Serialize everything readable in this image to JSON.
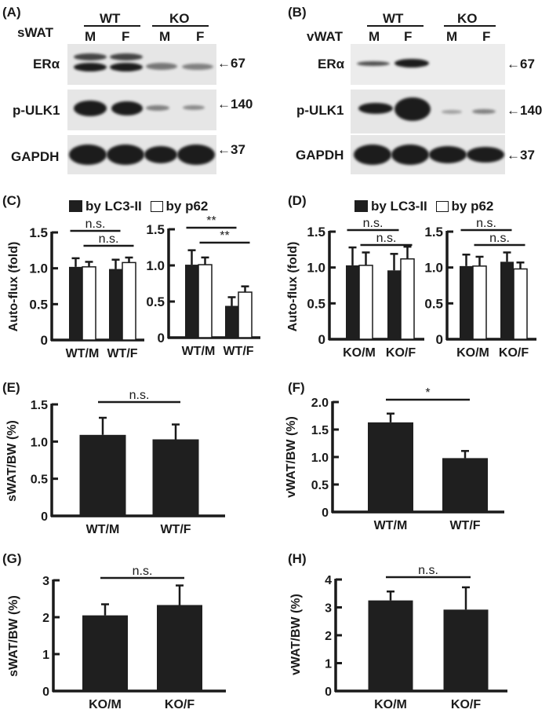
{
  "panels": {
    "A": {
      "label": "(A)",
      "tissue": "sWAT",
      "groups": [
        "WT",
        "KO"
      ],
      "lanes": [
        "M",
        "F",
        "M",
        "F"
      ],
      "rows": [
        {
          "name": "ERα",
          "marker": "←67"
        },
        {
          "name": "p-ULK1",
          "marker": "←140"
        },
        {
          "name": "GAPDH",
          "marker": "←37"
        }
      ]
    },
    "B": {
      "label": "(B)",
      "tissue": "vWAT",
      "groups": [
        "WT",
        "KO"
      ],
      "lanes": [
        "M",
        "F",
        "M",
        "F"
      ],
      "rows": [
        {
          "name": "ERα",
          "marker": "←67"
        },
        {
          "name": "p-ULK1",
          "marker": "←140"
        },
        {
          "name": "GAPDH",
          "marker": "←37"
        }
      ]
    },
    "C": {
      "label": "(C)",
      "legend": [
        "by LC3-II",
        "by p62"
      ]
    },
    "D": {
      "label": "(D)",
      "legend": [
        "by LC3-II",
        "by p62"
      ]
    },
    "E": {
      "label": "(E)"
    },
    "F": {
      "label": "(F)"
    },
    "G": {
      "label": "(G)"
    },
    "H": {
      "label": "(H)"
    }
  },
  "colors": {
    "bar_fill": "#1f1f1f",
    "bar_open": "#ffffff",
    "axis": "#1a1a1a"
  },
  "chart_data": [
    {
      "panel": "C-left",
      "type": "bar",
      "title": "",
      "ylabel": "Auto-flux (fold)",
      "xlabel": "",
      "categories": [
        "WT/M",
        "WT/F"
      ],
      "ylim": [
        0,
        1.5
      ],
      "yticks": [
        "0",
        "0.5",
        "1.0",
        "1.5"
      ],
      "series": [
        {
          "name": "by LC3-II",
          "values": [
            1.02,
            0.99
          ],
          "errors": [
            0.12,
            0.13
          ]
        },
        {
          "name": "by p62",
          "values": [
            1.02,
            1.08
          ],
          "errors": [
            0.07,
            0.07
          ]
        }
      ],
      "annotations": [
        {
          "text": "n.s.",
          "between": [
            "WT/M LC3-II",
            "WT/F LC3-II"
          ]
        },
        {
          "text": "n.s.",
          "between": [
            "WT/M p62",
            "WT/F p62"
          ]
        }
      ]
    },
    {
      "panel": "C-right",
      "type": "bar",
      "title": "",
      "ylabel": "",
      "xlabel": "",
      "categories": [
        "WT/M",
        "WT/F"
      ],
      "ylim": [
        0,
        1.5
      ],
      "yticks": [
        "0",
        "0.5",
        "1.0",
        "1.5"
      ],
      "series": [
        {
          "name": "by LC3-II",
          "values": [
            1.01,
            0.44
          ],
          "errors": [
            0.2,
            0.12
          ]
        },
        {
          "name": "by p62",
          "values": [
            1.01,
            0.63
          ],
          "errors": [
            0.1,
            0.08
          ]
        }
      ],
      "annotations": [
        {
          "text": "**",
          "between": [
            "WT/M LC3-II",
            "WT/F LC3-II"
          ]
        },
        {
          "text": "**",
          "between": [
            "WT/M p62",
            "WT/F p62"
          ]
        }
      ]
    },
    {
      "panel": "D-left",
      "type": "bar",
      "title": "",
      "ylabel": "Auto-flux (fold)",
      "xlabel": "",
      "categories": [
        "KO/M",
        "KO/F"
      ],
      "ylim": [
        0,
        1.5
      ],
      "yticks": [
        "0",
        "0.5",
        "1.0",
        "1.5"
      ],
      "series": [
        {
          "name": "by LC3-II",
          "values": [
            1.03,
            0.96
          ],
          "errors": [
            0.25,
            0.23
          ]
        },
        {
          "name": "by p62",
          "values": [
            1.03,
            1.12
          ],
          "errors": [
            0.18,
            0.17
          ]
        }
      ],
      "annotations": [
        {
          "text": "n.s.",
          "between": [
            "KO/M LC3-II",
            "KO/F LC3-II"
          ]
        },
        {
          "text": "n.s.",
          "between": [
            "KO/M p62",
            "KO/F p62"
          ]
        }
      ]
    },
    {
      "panel": "D-right",
      "type": "bar",
      "title": "",
      "ylabel": "",
      "xlabel": "",
      "categories": [
        "KO/M",
        "KO/F"
      ],
      "ylim": [
        0,
        1.5
      ],
      "yticks": [
        "0",
        "0.5",
        "1.0",
        "1.5"
      ],
      "series": [
        {
          "name": "by LC3-II",
          "values": [
            1.02,
            1.08
          ],
          "errors": [
            0.16,
            0.13
          ]
        },
        {
          "name": "by p62",
          "values": [
            1.02,
            0.98
          ],
          "errors": [
            0.13,
            0.09
          ]
        }
      ],
      "annotations": [
        {
          "text": "n.s.",
          "between": [
            "KO/M LC3-II",
            "KO/F LC3-II"
          ]
        },
        {
          "text": "n.s.",
          "between": [
            "KO/M p62",
            "KO/F p62"
          ]
        }
      ]
    },
    {
      "panel": "E",
      "type": "bar",
      "title": "",
      "ylabel": "sWAT/BW (%)",
      "xlabel": "",
      "categories": [
        "WT/M",
        "WT/F"
      ],
      "ylim": [
        0,
        1.5
      ],
      "yticks": [
        "0",
        "0.5",
        "1.0",
        "1.5"
      ],
      "values": [
        1.09,
        1.03
      ],
      "errors": [
        0.23,
        0.2
      ],
      "annotations": [
        {
          "text": "n.s."
        }
      ]
    },
    {
      "panel": "F",
      "type": "bar",
      "title": "",
      "ylabel": "vWAT/BW (%)",
      "xlabel": "",
      "categories": [
        "WT/M",
        "WT/F"
      ],
      "ylim": [
        0,
        2.0
      ],
      "yticks": [
        "0",
        "0.5",
        "1.0",
        "1.5",
        "2.0"
      ],
      "values": [
        1.63,
        0.98
      ],
      "errors": [
        0.16,
        0.13
      ],
      "annotations": [
        {
          "text": "*"
        }
      ]
    },
    {
      "panel": "G",
      "type": "bar",
      "title": "",
      "ylabel": "sWAT/BW (%)",
      "xlabel": "",
      "categories": [
        "KO/M",
        "KO/F"
      ],
      "ylim": [
        0,
        3
      ],
      "yticks": [
        "0",
        "1",
        "2",
        "3"
      ],
      "values": [
        2.05,
        2.33
      ],
      "errors": [
        0.3,
        0.53
      ],
      "annotations": [
        {
          "text": "n.s."
        }
      ]
    },
    {
      "panel": "H",
      "type": "bar",
      "title": "",
      "ylabel": "vWAT/BW (%)",
      "xlabel": "",
      "categories": [
        "KO/M",
        "KO/F"
      ],
      "ylim": [
        0,
        4
      ],
      "yticks": [
        "0",
        "1",
        "2",
        "3",
        "4"
      ],
      "values": [
        3.25,
        2.92
      ],
      "errors": [
        0.32,
        0.8
      ],
      "annotations": [
        {
          "text": "n.s."
        }
      ]
    }
  ]
}
